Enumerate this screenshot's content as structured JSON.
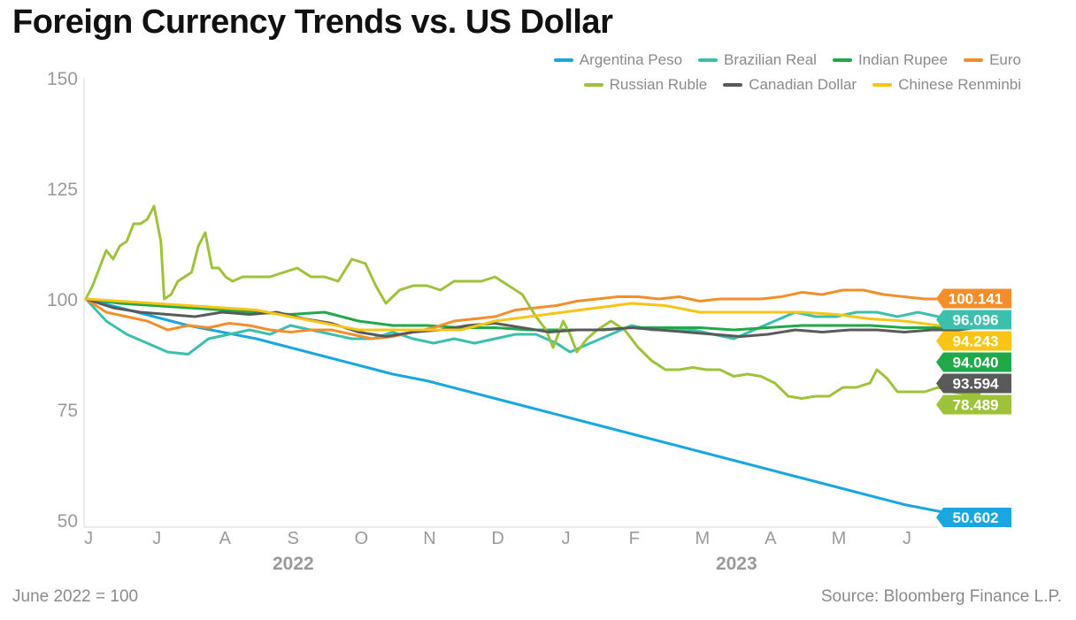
{
  "title": "Foreign Currency Trends vs. US Dollar",
  "footnote": "June 2022 = 100",
  "source": "Source: Bloomberg Finance L.P.",
  "chart_data": {
    "type": "line",
    "title": "Foreign Currency Trends vs. US Dollar",
    "xlabel": "",
    "ylabel": "",
    "ylim": [
      50,
      150
    ],
    "y_ticks": [
      50,
      75,
      100,
      125,
      150
    ],
    "x_ticks": [
      {
        "label": "J",
        "x": 0.3
      },
      {
        "label": "J",
        "x": 1.3
      },
      {
        "label": "A",
        "x": 2.3
      },
      {
        "label": "S",
        "x": 3.3
      },
      {
        "label": "O",
        "x": 4.3
      },
      {
        "label": "N",
        "x": 5.3
      },
      {
        "label": "D",
        "x": 6.3
      },
      {
        "label": "J",
        "x": 7.3
      },
      {
        "label": "F",
        "x": 8.3
      },
      {
        "label": "M",
        "x": 9.3
      },
      {
        "label": "A",
        "x": 10.3
      },
      {
        "label": "M",
        "x": 11.3
      },
      {
        "label": "J",
        "x": 12.3
      }
    ],
    "year_labels": [
      {
        "label": "2022",
        "x": 3.3
      },
      {
        "label": "2023",
        "x": 9.8
      }
    ],
    "xlim": [
      0,
      13.5
    ],
    "grid": false,
    "legend_position": "top-right",
    "series": [
      {
        "name": "Argentina Peso",
        "color": "#1aa7e0",
        "end_label": "50.602",
        "label_text_color": "#ffffff",
        "points": [
          [
            0,
            100
          ],
          [
            0.5,
            98
          ],
          [
            1,
            96
          ],
          [
            1.5,
            94
          ],
          [
            2,
            92.5
          ],
          [
            2.5,
            91
          ],
          [
            3,
            89
          ],
          [
            3.5,
            87
          ],
          [
            4,
            85
          ],
          [
            4.5,
            83
          ],
          [
            5,
            81.5
          ],
          [
            5.5,
            79.5
          ],
          [
            6,
            77.5
          ],
          [
            6.5,
            75.5
          ],
          [
            7,
            73.5
          ],
          [
            7.5,
            71.5
          ],
          [
            8,
            69.5
          ],
          [
            8.5,
            67.5
          ],
          [
            9,
            65.5
          ],
          [
            9.5,
            63.5
          ],
          [
            10,
            61.5
          ],
          [
            10.5,
            59.5
          ],
          [
            11,
            57.5
          ],
          [
            11.5,
            55.5
          ],
          [
            12,
            53.5
          ],
          [
            12.5,
            52
          ],
          [
            13.1,
            50.6
          ]
        ]
      },
      {
        "name": "Brazilian Real",
        "color": "#3dbfae",
        "end_label": "96.096",
        "label_text_color": "#ffffff",
        "points": [
          [
            0,
            100
          ],
          [
            0.3,
            95
          ],
          [
            0.6,
            92
          ],
          [
            0.9,
            90
          ],
          [
            1.2,
            88
          ],
          [
            1.5,
            87.5
          ],
          [
            1.8,
            91
          ],
          [
            2.1,
            92
          ],
          [
            2.4,
            93
          ],
          [
            2.7,
            92
          ],
          [
            3,
            94
          ],
          [
            3.3,
            93
          ],
          [
            3.6,
            92
          ],
          [
            3.9,
            91
          ],
          [
            4.2,
            91
          ],
          [
            4.5,
            92.5
          ],
          [
            4.8,
            91
          ],
          [
            5.1,
            90
          ],
          [
            5.4,
            91
          ],
          [
            5.7,
            90
          ],
          [
            6,
            91
          ],
          [
            6.3,
            92
          ],
          [
            6.6,
            92
          ],
          [
            6.9,
            90
          ],
          [
            7.1,
            88
          ],
          [
            7.4,
            90
          ],
          [
            7.7,
            92
          ],
          [
            8,
            94
          ],
          [
            8.3,
            93
          ],
          [
            8.6,
            93
          ],
          [
            8.9,
            93
          ],
          [
            9.2,
            92
          ],
          [
            9.5,
            91
          ],
          [
            9.8,
            93
          ],
          [
            10.1,
            95
          ],
          [
            10.4,
            97
          ],
          [
            10.7,
            96
          ],
          [
            11,
            96
          ],
          [
            11.3,
            97
          ],
          [
            11.6,
            97
          ],
          [
            11.9,
            96
          ],
          [
            12.2,
            97
          ],
          [
            12.5,
            96
          ],
          [
            12.8,
            95
          ],
          [
            13.1,
            96.1
          ]
        ]
      },
      {
        "name": "Indian Rupee",
        "color": "#21a84b",
        "end_label": "94.040",
        "label_text_color": "#ffffff",
        "points": [
          [
            0,
            100
          ],
          [
            0.5,
            99
          ],
          [
            1,
            98.5
          ],
          [
            1.5,
            98
          ],
          [
            2,
            97.5
          ],
          [
            2.5,
            97
          ],
          [
            3,
            96.5
          ],
          [
            3.5,
            97
          ],
          [
            4,
            95
          ],
          [
            4.5,
            94
          ],
          [
            5,
            94
          ],
          [
            5.5,
            93.5
          ],
          [
            6,
            93.5
          ],
          [
            6.5,
            93
          ],
          [
            7,
            93
          ],
          [
            7.5,
            93
          ],
          [
            8,
            93.5
          ],
          [
            8.5,
            93.5
          ],
          [
            9,
            93.5
          ],
          [
            9.5,
            93
          ],
          [
            10,
            93.5
          ],
          [
            10.5,
            94
          ],
          [
            11,
            94
          ],
          [
            11.5,
            94
          ],
          [
            12,
            93.5
          ],
          [
            12.5,
            93.5
          ],
          [
            13.1,
            94
          ]
        ]
      },
      {
        "name": "Euro",
        "color": "#f28e2b",
        "end_label": "100.141",
        "label_text_color": "#ffffff",
        "points": [
          [
            0,
            100
          ],
          [
            0.3,
            97
          ],
          [
            0.6,
            96
          ],
          [
            0.9,
            95
          ],
          [
            1.2,
            93
          ],
          [
            1.5,
            94
          ],
          [
            1.8,
            93.5
          ],
          [
            2.1,
            94.5
          ],
          [
            2.4,
            94
          ],
          [
            2.7,
            93
          ],
          [
            3,
            92.5
          ],
          [
            3.3,
            93
          ],
          [
            3.6,
            93
          ],
          [
            3.9,
            92
          ],
          [
            4.2,
            91
          ],
          [
            4.5,
            91.5
          ],
          [
            4.8,
            92.5
          ],
          [
            5.1,
            93.5
          ],
          [
            5.4,
            95
          ],
          [
            5.7,
            95.5
          ],
          [
            6,
            96
          ],
          [
            6.3,
            97.5
          ],
          [
            6.6,
            98
          ],
          [
            6.9,
            98.5
          ],
          [
            7.2,
            99.5
          ],
          [
            7.5,
            100
          ],
          [
            7.8,
            100.5
          ],
          [
            8.1,
            100.5
          ],
          [
            8.4,
            100
          ],
          [
            8.7,
            100.5
          ],
          [
            9,
            99.5
          ],
          [
            9.3,
            100
          ],
          [
            9.6,
            100
          ],
          [
            9.9,
            100
          ],
          [
            10.2,
            100.5
          ],
          [
            10.5,
            101.5
          ],
          [
            10.8,
            101
          ],
          [
            11.1,
            102
          ],
          [
            11.4,
            102
          ],
          [
            11.7,
            101
          ],
          [
            12,
            100.5
          ],
          [
            12.3,
            100
          ],
          [
            12.6,
            100
          ],
          [
            12.9,
            99.5
          ],
          [
            13.1,
            100.1
          ]
        ]
      },
      {
        "name": "Russian Ruble",
        "color": "#9fc23b",
        "end_label": "78.489",
        "label_text_color": "#ffffff",
        "points": [
          [
            0,
            100
          ],
          [
            0.1,
            103
          ],
          [
            0.2,
            107
          ],
          [
            0.3,
            111
          ],
          [
            0.4,
            109
          ],
          [
            0.5,
            112
          ],
          [
            0.6,
            113
          ],
          [
            0.7,
            117
          ],
          [
            0.8,
            117
          ],
          [
            0.9,
            118
          ],
          [
            1,
            121
          ],
          [
            1.05,
            117
          ],
          [
            1.1,
            113
          ],
          [
            1.15,
            100
          ],
          [
            1.25,
            101
          ],
          [
            1.35,
            104
          ],
          [
            1.45,
            105
          ],
          [
            1.55,
            106
          ],
          [
            1.65,
            112
          ],
          [
            1.75,
            115
          ],
          [
            1.85,
            107
          ],
          [
            1.95,
            107
          ],
          [
            2.05,
            105
          ],
          [
            2.15,
            104
          ],
          [
            2.3,
            105
          ],
          [
            2.5,
            105
          ],
          [
            2.7,
            105
          ],
          [
            2.9,
            106
          ],
          [
            3.1,
            107
          ],
          [
            3.3,
            105
          ],
          [
            3.5,
            105
          ],
          [
            3.7,
            104
          ],
          [
            3.9,
            109
          ],
          [
            4.1,
            108
          ],
          [
            4.25,
            103
          ],
          [
            4.4,
            99
          ],
          [
            4.6,
            102
          ],
          [
            4.8,
            103
          ],
          [
            5,
            103
          ],
          [
            5.2,
            102
          ],
          [
            5.4,
            104
          ],
          [
            5.6,
            104
          ],
          [
            5.8,
            104
          ],
          [
            6,
            105
          ],
          [
            6.2,
            103
          ],
          [
            6.4,
            101
          ],
          [
            6.6,
            96
          ],
          [
            6.75,
            93
          ],
          [
            6.85,
            89
          ],
          [
            7,
            95
          ],
          [
            7.1,
            92
          ],
          [
            7.2,
            88
          ],
          [
            7.35,
            91
          ],
          [
            7.5,
            93
          ],
          [
            7.7,
            95
          ],
          [
            7.9,
            93
          ],
          [
            8.1,
            89
          ],
          [
            8.3,
            86
          ],
          [
            8.5,
            84
          ],
          [
            8.7,
            84
          ],
          [
            8.9,
            84.5
          ],
          [
            9.1,
            84
          ],
          [
            9.3,
            84
          ],
          [
            9.5,
            82.5
          ],
          [
            9.7,
            83
          ],
          [
            9.9,
            82.5
          ],
          [
            10.1,
            81
          ],
          [
            10.3,
            78
          ],
          [
            10.5,
            77.5
          ],
          [
            10.7,
            78
          ],
          [
            10.9,
            78
          ],
          [
            11.1,
            80
          ],
          [
            11.3,
            80
          ],
          [
            11.5,
            81
          ],
          [
            11.6,
            84
          ],
          [
            11.75,
            82
          ],
          [
            11.9,
            79
          ],
          [
            12.1,
            79
          ],
          [
            12.3,
            79
          ],
          [
            12.5,
            80
          ],
          [
            12.7,
            79
          ],
          [
            12.9,
            78.5
          ],
          [
            13.1,
            78.5
          ]
        ]
      },
      {
        "name": "Canadian Dollar",
        "color": "#5a5a5a",
        "end_label": "93.594",
        "label_text_color": "#ffffff",
        "points": [
          [
            0,
            100
          ],
          [
            0.4,
            98
          ],
          [
            0.8,
            97
          ],
          [
            1.2,
            96.5
          ],
          [
            1.6,
            96
          ],
          [
            2,
            97
          ],
          [
            2.4,
            96.5
          ],
          [
            2.8,
            97
          ],
          [
            3.2,
            95.5
          ],
          [
            3.6,
            94.5
          ],
          [
            4,
            92.5
          ],
          [
            4.4,
            91.5
          ],
          [
            4.8,
            92.5
          ],
          [
            5.2,
            93
          ],
          [
            5.6,
            94
          ],
          [
            6,
            94.5
          ],
          [
            6.4,
            93.5
          ],
          [
            6.8,
            92.5
          ],
          [
            7.2,
            93
          ],
          [
            7.6,
            93
          ],
          [
            8,
            93.5
          ],
          [
            8.4,
            93
          ],
          [
            8.8,
            92.5
          ],
          [
            9.2,
            92
          ],
          [
            9.6,
            91.5
          ],
          [
            10,
            92
          ],
          [
            10.4,
            93
          ],
          [
            10.8,
            92.5
          ],
          [
            11.2,
            93
          ],
          [
            11.6,
            93
          ],
          [
            12,
            92.5
          ],
          [
            12.4,
            93
          ],
          [
            12.8,
            93
          ],
          [
            13.1,
            93.6
          ]
        ]
      },
      {
        "name": "Chinese Renminbi",
        "color": "#f6c516",
        "end_label": "94.243",
        "label_text_color": "#ffffff",
        "points": [
          [
            0,
            100
          ],
          [
            0.5,
            99.5
          ],
          [
            1,
            99
          ],
          [
            1.5,
            98.5
          ],
          [
            2,
            98
          ],
          [
            2.5,
            97.5
          ],
          [
            3,
            96
          ],
          [
            3.5,
            94.5
          ],
          [
            4,
            93
          ],
          [
            4.5,
            93
          ],
          [
            5,
            93
          ],
          [
            5.5,
            93
          ],
          [
            6,
            95
          ],
          [
            6.5,
            96
          ],
          [
            7,
            97
          ],
          [
            7.5,
            98
          ],
          [
            8,
            99
          ],
          [
            8.5,
            98.5
          ],
          [
            9,
            97
          ],
          [
            9.5,
            97
          ],
          [
            10,
            97
          ],
          [
            10.5,
            97
          ],
          [
            11,
            96.5
          ],
          [
            11.5,
            95.5
          ],
          [
            12,
            95
          ],
          [
            12.5,
            94
          ],
          [
            13.1,
            94.2
          ]
        ]
      }
    ]
  }
}
